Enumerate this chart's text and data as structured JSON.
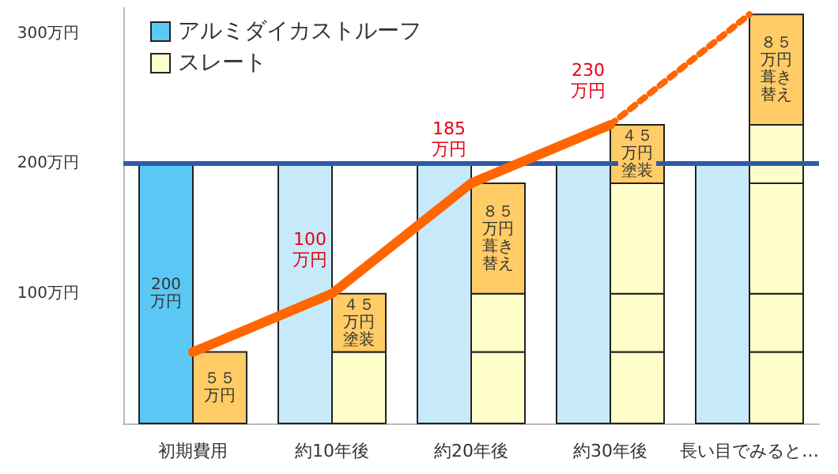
{
  "chart_data": {
    "type": "bar",
    "legend": "top left",
    "grid": false,
    "categories": [
      "初期費用",
      "約10年後",
      "約20年後",
      "約30年後",
      "長い目でみると…"
    ],
    "ylim": [
      0,
      320
    ],
    "yticks": [
      {
        "value": 100,
        "label": "100万円"
      },
      {
        "value": 200,
        "label": "200万円"
      },
      {
        "value": 300,
        "label": "300万円"
      }
    ],
    "series": [
      {
        "name": "アルミダイカストルーフ",
        "color": "#5bc8f5",
        "colors": [
          "#5bc8f5",
          "#c6eafa",
          "#c6eafa",
          "#c6eafa",
          "#c6eafa"
        ],
        "values": [
          200,
          200,
          200,
          200,
          200
        ],
        "value_labels": [
          "200\n万円",
          null,
          null,
          null,
          null
        ]
      },
      {
        "name": "スレート",
        "color": "#ffffcc",
        "colors": [
          "#ffcc66",
          "#ffffcc",
          "#ffffcc",
          "#ffffcc",
          "#ffffcc"
        ],
        "base": [
          0,
          0,
          0,
          0,
          0
        ],
        "values": [
          55,
          55,
          55,
          55,
          55
        ],
        "value_labels": [
          "５５万円",
          null,
          null,
          null,
          null
        ]
      },
      {
        "colors": [
          null,
          "#ffcc66",
          "#ffffcc",
          "#ffffcc",
          "#ffffcc"
        ],
        "base": [
          null,
          55,
          55,
          55,
          55
        ],
        "values": [
          null,
          45,
          45,
          45,
          45
        ],
        "value_labels": [
          null,
          "４５万円塗装",
          null,
          null,
          null
        ]
      },
      {
        "colors": [
          null,
          null,
          "#ffcc66",
          "#ffffcc",
          "#ffffcc"
        ],
        "base": [
          null,
          null,
          100,
          100,
          100
        ],
        "values": [
          null,
          null,
          85,
          85,
          85
        ],
        "value_labels": [
          null,
          null,
          "８５万円葺き替え",
          null,
          null
        ]
      },
      {
        "colors": [
          null,
          null,
          null,
          "#ffcc66",
          "#ffffcc"
        ],
        "base": [
          null,
          null,
          null,
          185,
          185
        ],
        "values": [
          null,
          null,
          null,
          45,
          45
        ],
        "value_labels": [
          null,
          null,
          null,
          "４５万円塗装",
          null
        ]
      },
      {
        "colors": [
          null,
          null,
          null,
          null,
          "#ffcc66"
        ],
        "base": [
          null,
          null,
          null,
          null,
          230
        ],
        "values": [
          null,
          null,
          null,
          null,
          85
        ],
        "value_labels": [
          null,
          null,
          null,
          null,
          "８５万円葺き替え"
        ]
      },
      {
        "type": "line",
        "color": "#ff6600",
        "line_style": "solid",
        "values": [
          55,
          100,
          185,
          230,
          null
        ],
        "value_labels": [
          null,
          "100\n万円",
          "185\n万円",
          "230\n万円",
          null
        ]
      },
      {
        "type": "line",
        "color": "#ff6600",
        "line_style": "dotted",
        "values": [
          null,
          null,
          null,
          230,
          315
        ]
      }
    ],
    "ref_lines": [
      {
        "axis": "y",
        "value": 200,
        "color": "#2e5aa8"
      }
    ]
  }
}
